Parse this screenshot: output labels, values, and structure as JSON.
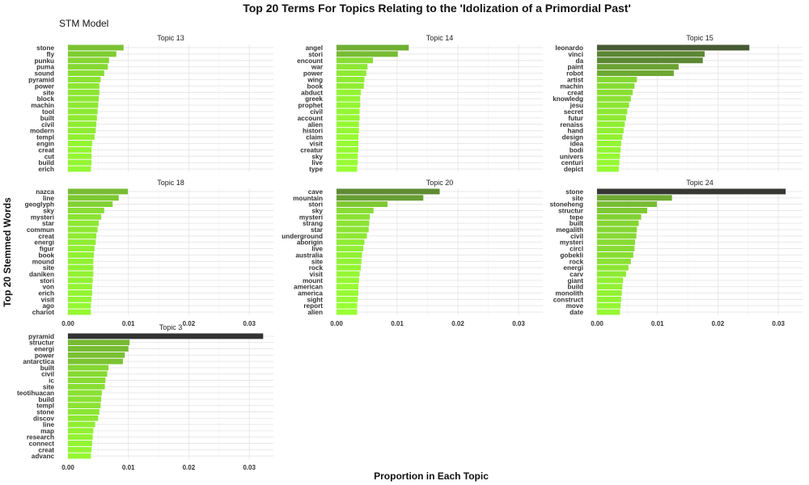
{
  "chart_data": {
    "type": "bar",
    "orientation": "horizontal",
    "title": "Top 20 Terms For Topics Relating to the 'Idolization of a Primordial Past'",
    "subtitle": "STM Model",
    "xlabel": "Proportion in Each Topic",
    "ylabel": "Top 20 Stemmed Words",
    "xlim": [
      0,
      0.034
    ],
    "xticks": [
      "0.00",
      "0.01",
      "0.02",
      "0.03"
    ],
    "grid": true,
    "legend": "none",
    "colors": {
      "low": "#99ff33",
      "high": "#333333"
    },
    "facets": [
      {
        "name": "Topic 13",
        "terms": [
          "stone",
          "fly",
          "punku",
          "puma",
          "sound",
          "pyramid",
          "power",
          "site",
          "block",
          "machin",
          "tool",
          "built",
          "civil",
          "modern",
          "templ",
          "engin",
          "creat",
          "cut",
          "build",
          "erich"
        ],
        "values": [
          0.0092,
          0.008,
          0.0068,
          0.0066,
          0.006,
          0.0054,
          0.0052,
          0.0052,
          0.0051,
          0.005,
          0.0049,
          0.0048,
          0.0047,
          0.0046,
          0.0044,
          0.004,
          0.0039,
          0.0039,
          0.0039,
          0.0038
        ]
      },
      {
        "name": "Topic 14",
        "terms": [
          "angel",
          "stori",
          "encount",
          "war",
          "power",
          "wing",
          "book",
          "abduct",
          "greek",
          "prophet",
          "civil",
          "account",
          "alien",
          "histori",
          "claim",
          "visit",
          "creatur",
          "sky",
          "live",
          "type"
        ],
        "values": [
          0.0119,
          0.0101,
          0.006,
          0.0051,
          0.0049,
          0.0046,
          0.0045,
          0.004,
          0.0039,
          0.0039,
          0.0038,
          0.0038,
          0.0037,
          0.0037,
          0.0036,
          0.0036,
          0.0036,
          0.0035,
          0.0035,
          0.0034
        ]
      },
      {
        "name": "Topic 15",
        "terms": [
          "leonardo",
          "vinci",
          "da",
          "paint",
          "robot",
          "artist",
          "machin",
          "creat",
          "knowledg",
          "jesu",
          "secret",
          "futur",
          "renaiss",
          "hand",
          "design",
          "idea",
          "bodi",
          "univers",
          "centuri",
          "depict"
        ],
        "values": [
          0.0252,
          0.0178,
          0.0175,
          0.0135,
          0.0127,
          0.0066,
          0.0062,
          0.0059,
          0.0056,
          0.0053,
          0.005,
          0.0048,
          0.0046,
          0.0044,
          0.0042,
          0.004,
          0.0039,
          0.0038,
          0.0037,
          0.0036
        ]
      },
      {
        "name": "Topic 18",
        "terms": [
          "nazca",
          "line",
          "geoglyph",
          "sky",
          "mysteri",
          "star",
          "commun",
          "creat",
          "energi",
          "figur",
          "book",
          "mound",
          "site",
          "daniken",
          "stori",
          "von",
          "erich",
          "visit",
          "ago",
          "chariot"
        ],
        "values": [
          0.0099,
          0.0084,
          0.0074,
          0.006,
          0.0055,
          0.0051,
          0.0049,
          0.0047,
          0.0046,
          0.0044,
          0.0043,
          0.0042,
          0.0042,
          0.0042,
          0.0041,
          0.004,
          0.004,
          0.0039,
          0.0038,
          0.0038
        ]
      },
      {
        "name": "Topic 20",
        "terms": [
          "cave",
          "mountain",
          "stori",
          "sky",
          "mysteri",
          "strang",
          "star",
          "underground",
          "aborigin",
          "live",
          "australia",
          "site",
          "rock",
          "visit",
          "mount",
          "american",
          "america",
          "sight",
          "report",
          "alien"
        ],
        "values": [
          0.017,
          0.0143,
          0.0084,
          0.0061,
          0.0055,
          0.0054,
          0.0053,
          0.005,
          0.0046,
          0.0044,
          0.0042,
          0.0041,
          0.004,
          0.0038,
          0.0037,
          0.0036,
          0.0036,
          0.0035,
          0.0034,
          0.0034
        ]
      },
      {
        "name": "Topic 24",
        "terms": [
          "stone",
          "site",
          "stoneheng",
          "structur",
          "tepe",
          "built",
          "megalith",
          "civil",
          "mysteri",
          "circl",
          "gobekli",
          "rock",
          "energi",
          "carv",
          "giant",
          "build",
          "monolith",
          "construct",
          "move",
          "date"
        ],
        "values": [
          0.0312,
          0.0124,
          0.0099,
          0.0083,
          0.0073,
          0.0069,
          0.0066,
          0.0065,
          0.0063,
          0.0062,
          0.006,
          0.0056,
          0.0052,
          0.0048,
          0.0043,
          0.0042,
          0.0041,
          0.004,
          0.0039,
          0.0038
        ]
      },
      {
        "name": "Topic 3",
        "terms": [
          "pyramid",
          "structur",
          "energi",
          "power",
          "antarctica",
          "built",
          "civil",
          "ic",
          "site",
          "teotihuacan",
          "build",
          "templ",
          "stone",
          "discov",
          "line",
          "map",
          "research",
          "connect",
          "creat",
          "advanc"
        ],
        "values": [
          0.0323,
          0.0102,
          0.01,
          0.0094,
          0.0091,
          0.0067,
          0.0065,
          0.0062,
          0.0061,
          0.0056,
          0.0055,
          0.0054,
          0.0052,
          0.005,
          0.0045,
          0.0042,
          0.0041,
          0.004,
          0.0039,
          0.0038
        ]
      }
    ]
  }
}
